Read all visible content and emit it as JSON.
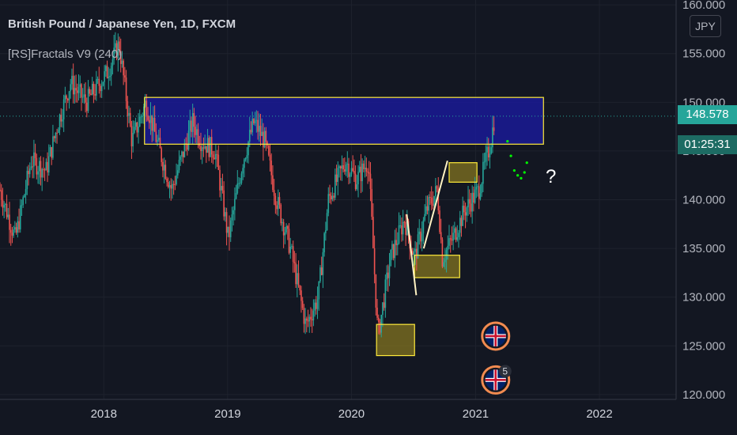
{
  "header": {
    "title": "British Pound / Japanese Yen, 1D, FXCM",
    "indicator": "[RS]Fractals V9 (240)"
  },
  "price_axis": {
    "currency": "JPY",
    "last_price": "148.578",
    "countdown": "01:25:31"
  },
  "annotations": {
    "question_mark": "?",
    "event_count": "5"
  },
  "colors": {
    "background": "#131722",
    "up_candle": "#26a69a",
    "down_candle": "#ef5350",
    "zone_fill": "#1a1aa0",
    "zone_border": "#ffeb3b",
    "box_fill": "#8a7a20",
    "projection": "#00ff00",
    "badge_ring": "#f28b50"
  },
  "chart_data": {
    "type": "candlestick",
    "title": "British Pound / Japanese Yen, 1D, FXCM",
    "x_ticks": [
      "2018",
      "2019",
      "2020",
      "2021",
      "2022"
    ],
    "y_ticks": [
      "120.000",
      "125.000",
      "130.000",
      "135.000",
      "140.000",
      "145.000",
      "150.000",
      "155.000",
      "160.000"
    ],
    "ylim": [
      119.5,
      160.5
    ],
    "xlim": [
      "2017-03-01",
      "2022-08-15"
    ],
    "grid": true,
    "last_price": 148.578,
    "anchors": [
      [
        "2017-03-01",
        141.0
      ],
      [
        "2017-04-15",
        136.0
      ],
      [
        "2017-06-01",
        144.0
      ],
      [
        "2017-07-15",
        143.0
      ],
      [
        "2017-08-20",
        148.0
      ],
      [
        "2017-09-25",
        152.0
      ],
      [
        "2017-11-10",
        150.0
      ],
      [
        "2018-01-10",
        153.0
      ],
      [
        "2018-02-15",
        156.0
      ],
      [
        "2018-03-25",
        146.0
      ],
      [
        "2018-05-05",
        150.0
      ],
      [
        "2018-06-15",
        145.0
      ],
      [
        "2018-07-20",
        141.0
      ],
      [
        "2018-09-20",
        148.0
      ],
      [
        "2018-10-15",
        146.0
      ],
      [
        "2018-11-25",
        145.0
      ],
      [
        "2019-01-03",
        136.0
      ],
      [
        "2019-02-15",
        144.0
      ],
      [
        "2019-03-20",
        148.0
      ],
      [
        "2019-04-20",
        146.0
      ],
      [
        "2019-05-25",
        140.0
      ],
      [
        "2019-07-05",
        135.0
      ],
      [
        "2019-08-20",
        127.0
      ],
      [
        "2019-09-25",
        130.0
      ],
      [
        "2019-10-25",
        140.0
      ],
      [
        "2019-12-15",
        144.0
      ],
      [
        "2020-01-15",
        142.0
      ],
      [
        "2020-02-20",
        144.0
      ],
      [
        "2020-03-19",
        126.0
      ],
      [
        "2020-04-25",
        134.0
      ],
      [
        "2020-06-05",
        138.0
      ],
      [
        "2020-07-05",
        134.0
      ],
      [
        "2020-08-10",
        139.0
      ],
      [
        "2020-09-10",
        141.0
      ],
      [
        "2020-09-25",
        134.0
      ],
      [
        "2020-10-25",
        136.0
      ],
      [
        "2020-12-01",
        139.0
      ],
      [
        "2021-01-10",
        141.0
      ],
      [
        "2021-02-15",
        146.0
      ],
      [
        "2021-02-26",
        148.578
      ]
    ],
    "zones": [
      {
        "kind": "resistance",
        "x0": "2018-05-01",
        "x1": "2021-07-20",
        "y0": 145.7,
        "y1": 150.5
      },
      {
        "kind": "box",
        "x0": "2020-03-15",
        "x1": "2020-07-05",
        "y0": 124.0,
        "y1": 127.2
      },
      {
        "kind": "box",
        "x0": "2020-07-05",
        "x1": "2020-11-15",
        "y0": 132.0,
        "y1": 134.3
      },
      {
        "kind": "box",
        "x0": "2020-10-15",
        "x1": "2021-01-05",
        "y0": 141.8,
        "y1": 143.8
      }
    ],
    "lines": [
      {
        "from": [
          "2020-06-12",
          138.5
        ],
        "to": [
          "2020-07-10",
          130.2
        ]
      },
      {
        "from": [
          "2020-08-01",
          135.0
        ],
        "to": [
          "2020-10-10",
          144.0
        ]
      }
    ],
    "projection": [
      [
        "2021-04-05",
        146.0
      ],
      [
        "2021-04-15",
        144.5
      ],
      [
        "2021-04-25",
        143.0
      ],
      [
        "2021-05-05",
        142.5
      ],
      [
        "2021-05-15",
        142.2
      ],
      [
        "2021-05-25",
        142.8
      ],
      [
        "2021-06-01",
        143.8
      ]
    ],
    "events": [
      {
        "date": "2021-03-01",
        "y": 126.0,
        "flag": "uk"
      },
      {
        "date": "2021-03-01",
        "y": 121.5,
        "flag": "uk",
        "count": "5"
      }
    ]
  }
}
